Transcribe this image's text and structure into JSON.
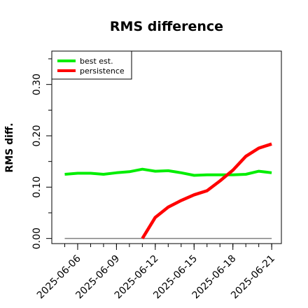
{
  "chart_data": {
    "type": "line",
    "title": "RMS difference",
    "xlabel": "",
    "ylabel": "RMS diff.",
    "x": [
      "2025-06-05",
      "2025-06-06",
      "2025-06-07",
      "2025-06-08",
      "2025-06-09",
      "2025-06-10",
      "2025-06-11",
      "2025-06-12",
      "2025-06-13",
      "2025-06-14",
      "2025-06-15",
      "2025-06-16",
      "2025-06-17",
      "2025-06-18",
      "2025-06-19",
      "2025-06-20",
      "2025-06-21"
    ],
    "xticks": [
      "2025-06-06",
      "2025-06-09",
      "2025-06-12",
      "2025-06-15",
      "2025-06-18",
      "2025-06-21"
    ],
    "yticks": [
      "0.00",
      "0.10",
      "0.20",
      "0.30"
    ],
    "ylim": [
      -0.01,
      0.365
    ],
    "xlim": [
      "2025-06-04T00:00",
      "2025-06-21T18:00"
    ],
    "series": [
      {
        "name": "best est.",
        "color": "#00ee00",
        "values": [
          0.125,
          0.127,
          0.127,
          0.125,
          0.128,
          0.13,
          0.135,
          0.131,
          0.132,
          0.128,
          0.123,
          0.124,
          0.124,
          0.124,
          0.125,
          0.131,
          0.128
        ]
      },
      {
        "name": "persistence",
        "color": "#ff0000",
        "values": [
          null,
          null,
          null,
          null,
          null,
          null,
          0.0,
          0.041,
          0.061,
          0.074,
          0.085,
          0.093,
          0.112,
          0.133,
          0.16,
          0.176,
          0.184
        ]
      }
    ],
    "reference_line": {
      "value": 0.0,
      "color": "#808080"
    },
    "legend_position": "top-left",
    "grid": false
  }
}
